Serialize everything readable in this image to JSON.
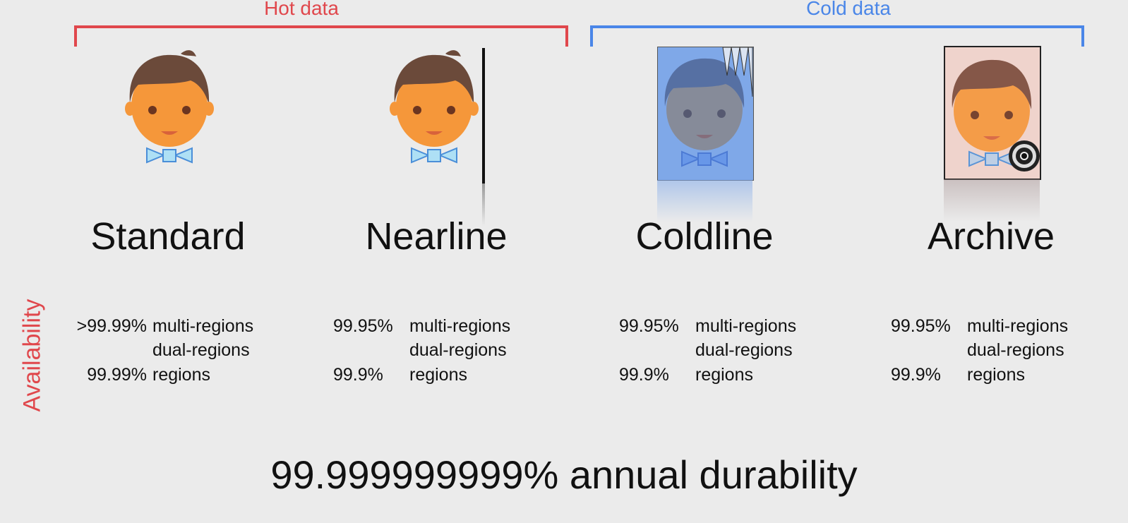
{
  "colors": {
    "hot": "#e0474c",
    "cold": "#4a86e8"
  },
  "groups": [
    {
      "label": "Hot data",
      "color": "#e0474c"
    },
    {
      "label": "Cold data",
      "color": "#4a86e8"
    }
  ],
  "tiers": [
    {
      "name": "Standard",
      "icon": "person-icon",
      "availability": [
        {
          "pct": ">99.99%",
          "scope": "multi-regions"
        },
        {
          "pct": "",
          "scope": "dual-regions"
        },
        {
          "pct": "99.99%",
          "scope": "regions"
        }
      ]
    },
    {
      "name": "Nearline",
      "icon": "person-icon",
      "availability": [
        {
          "pct": "99.95%",
          "scope": "multi-regions"
        },
        {
          "pct": "",
          "scope": "dual-regions"
        },
        {
          "pct": "99.9%",
          "scope": "regions"
        }
      ]
    },
    {
      "name": "Coldline",
      "icon": "person-frame-icon",
      "availability": [
        {
          "pct": "99.95%",
          "scope": "multi-regions"
        },
        {
          "pct": "",
          "scope": "dual-regions"
        },
        {
          "pct": "99.9%",
          "scope": "regions"
        }
      ]
    },
    {
      "name": "Archive",
      "icon": "person-vault-icon",
      "availability": [
        {
          "pct": "99.95%",
          "scope": "multi-regions"
        },
        {
          "pct": "",
          "scope": "dual-regions"
        },
        {
          "pct": "99.9%",
          "scope": "regions"
        }
      ]
    }
  ],
  "availability_label": "Availability",
  "durability": "99.999999999% annual durability"
}
